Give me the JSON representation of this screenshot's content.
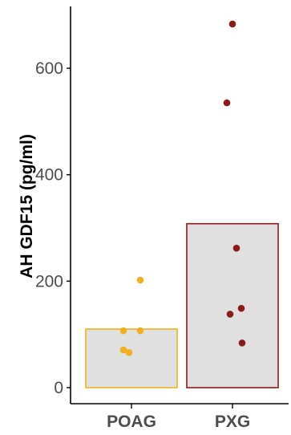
{
  "chart_data": {
    "type": "bar",
    "title": "",
    "xlabel": "",
    "ylabel": "AH GDF15 (pg/ml)",
    "ylim": [
      0,
      680
    ],
    "y_ticks": [
      0,
      200,
      400,
      600
    ],
    "grid": false,
    "legend": "none",
    "categories": [
      "POAG",
      "PXG"
    ],
    "bar_fill": "#e0e0e0",
    "series": [
      {
        "category": "POAG",
        "mean": 110,
        "color": "#f0b020",
        "points": [
          202,
          107,
          107,
          71,
          66
        ]
      },
      {
        "category": "PXG",
        "mean": 308,
        "color": "#8b1a1a",
        "points": [
          683,
          535,
          262,
          149,
          138,
          84
        ]
      }
    ]
  }
}
